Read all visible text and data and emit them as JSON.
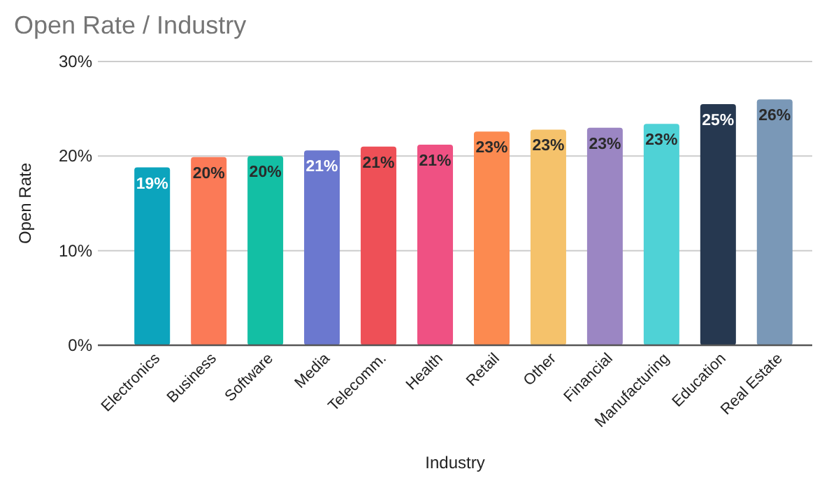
{
  "chart_data": {
    "type": "bar",
    "title": "Open Rate / Industry",
    "xlabel": "Industry",
    "ylabel": "Open Rate",
    "categories": [
      "Electronics",
      "Business",
      "Software",
      "Media",
      "Telecomm.",
      "Health",
      "Retail",
      "Other",
      "Financial",
      "Manufacturing",
      "Education",
      "Real Estate"
    ],
    "values": [
      18.8,
      19.9,
      20.0,
      20.6,
      21.0,
      21.2,
      22.6,
      22.8,
      23.0,
      23.4,
      25.5,
      26.0
    ],
    "value_labels": [
      "19%",
      "20%",
      "20%",
      "21%",
      "21%",
      "21%",
      "23%",
      "23%",
      "23%",
      "23%",
      "25%",
      "26%"
    ],
    "colors": [
      "#0ca4bd",
      "#fb7a57",
      "#13bfa4",
      "#6b78cf",
      "#ee5057",
      "#ef5183",
      "#fc8a50",
      "#f5c26b",
      "#9b86c3",
      "#4fd2d6",
      "#263850",
      "#7a98b7"
    ],
    "ylim": [
      0,
      30
    ],
    "yticks": [
      {
        "value": 0,
        "label": "0%"
      },
      {
        "value": 10,
        "label": "10%"
      },
      {
        "value": 20,
        "label": "20%"
      },
      {
        "value": 30,
        "label": "30%"
      }
    ],
    "grid": "y"
  }
}
